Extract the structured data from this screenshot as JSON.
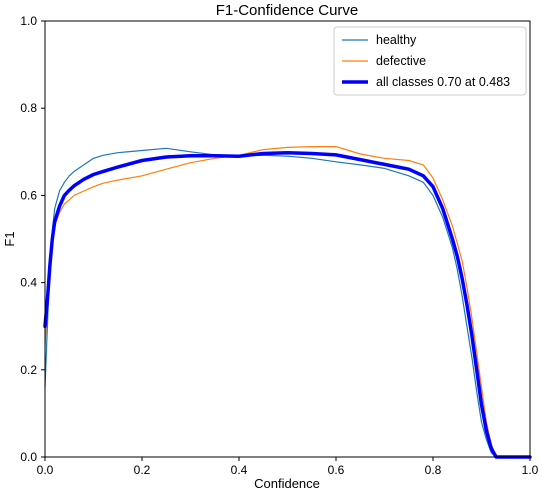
{
  "chart_data": {
    "type": "line",
    "title": "F1-Confidence Curve",
    "xlabel": "Confidence",
    "ylabel": "F1",
    "xlim": [
      0.0,
      1.0
    ],
    "ylim": [
      0.0,
      1.0
    ],
    "xticks": [
      "0.0",
      "0.2",
      "0.4",
      "0.6",
      "0.8",
      "1.0"
    ],
    "yticks": [
      "0.0",
      "0.2",
      "0.4",
      "0.6",
      "0.8",
      "1.0"
    ],
    "grid": false,
    "legend_position": "top-right",
    "series": [
      {
        "name": "healthy",
        "color": "#1f77b4",
        "width": "thin",
        "x": [
          0.0,
          0.005,
          0.01,
          0.015,
          0.02,
          0.03,
          0.04,
          0.05,
          0.06,
          0.08,
          0.1,
          0.12,
          0.15,
          0.2,
          0.25,
          0.3,
          0.35,
          0.4,
          0.45,
          0.5,
          0.55,
          0.6,
          0.65,
          0.7,
          0.75,
          0.78,
          0.8,
          0.82,
          0.84,
          0.85,
          0.86,
          0.87,
          0.88,
          0.89,
          0.9,
          0.91,
          0.92,
          0.93,
          0.95,
          1.0
        ],
        "y": [
          0.16,
          0.3,
          0.45,
          0.52,
          0.57,
          0.61,
          0.63,
          0.645,
          0.655,
          0.67,
          0.685,
          0.692,
          0.698,
          0.703,
          0.708,
          0.7,
          0.693,
          0.69,
          0.692,
          0.69,
          0.685,
          0.677,
          0.67,
          0.662,
          0.645,
          0.63,
          0.6,
          0.55,
          0.48,
          0.43,
          0.37,
          0.3,
          0.23,
          0.15,
          0.08,
          0.04,
          0.01,
          0.0,
          0.0,
          0.0
        ]
      },
      {
        "name": "defective",
        "color": "#ff7f0e",
        "width": "thin",
        "x": [
          0.0,
          0.005,
          0.01,
          0.015,
          0.02,
          0.03,
          0.04,
          0.05,
          0.06,
          0.08,
          0.1,
          0.12,
          0.15,
          0.2,
          0.25,
          0.3,
          0.35,
          0.4,
          0.45,
          0.5,
          0.55,
          0.6,
          0.65,
          0.7,
          0.75,
          0.78,
          0.8,
          0.82,
          0.84,
          0.85,
          0.86,
          0.87,
          0.88,
          0.89,
          0.9,
          0.91,
          0.92,
          0.93,
          0.95,
          1.0
        ],
        "y": [
          0.25,
          0.36,
          0.45,
          0.5,
          0.53,
          0.56,
          0.58,
          0.59,
          0.6,
          0.61,
          0.62,
          0.628,
          0.635,
          0.645,
          0.66,
          0.675,
          0.685,
          0.692,
          0.705,
          0.71,
          0.712,
          0.712,
          0.695,
          0.685,
          0.68,
          0.67,
          0.64,
          0.59,
          0.53,
          0.49,
          0.45,
          0.39,
          0.32,
          0.24,
          0.16,
          0.08,
          0.03,
          0.0,
          0.0,
          0.0
        ]
      },
      {
        "name": "all classes 0.70 at 0.483",
        "color": "#0000ff",
        "width": "thick",
        "x": [
          0.0,
          0.005,
          0.01,
          0.015,
          0.02,
          0.03,
          0.04,
          0.05,
          0.06,
          0.08,
          0.1,
          0.12,
          0.15,
          0.2,
          0.25,
          0.3,
          0.35,
          0.4,
          0.45,
          0.5,
          0.55,
          0.6,
          0.65,
          0.7,
          0.75,
          0.78,
          0.8,
          0.82,
          0.84,
          0.85,
          0.86,
          0.87,
          0.88,
          0.89,
          0.9,
          0.91,
          0.92,
          0.93,
          0.95,
          1.0
        ],
        "y": [
          0.3,
          0.36,
          0.44,
          0.5,
          0.54,
          0.575,
          0.6,
          0.612,
          0.622,
          0.637,
          0.648,
          0.655,
          0.665,
          0.68,
          0.688,
          0.691,
          0.691,
          0.69,
          0.696,
          0.698,
          0.696,
          0.693,
          0.682,
          0.671,
          0.66,
          0.645,
          0.62,
          0.57,
          0.5,
          0.46,
          0.41,
          0.35,
          0.28,
          0.2,
          0.12,
          0.06,
          0.02,
          0.0,
          0.0,
          0.0
        ]
      }
    ]
  }
}
